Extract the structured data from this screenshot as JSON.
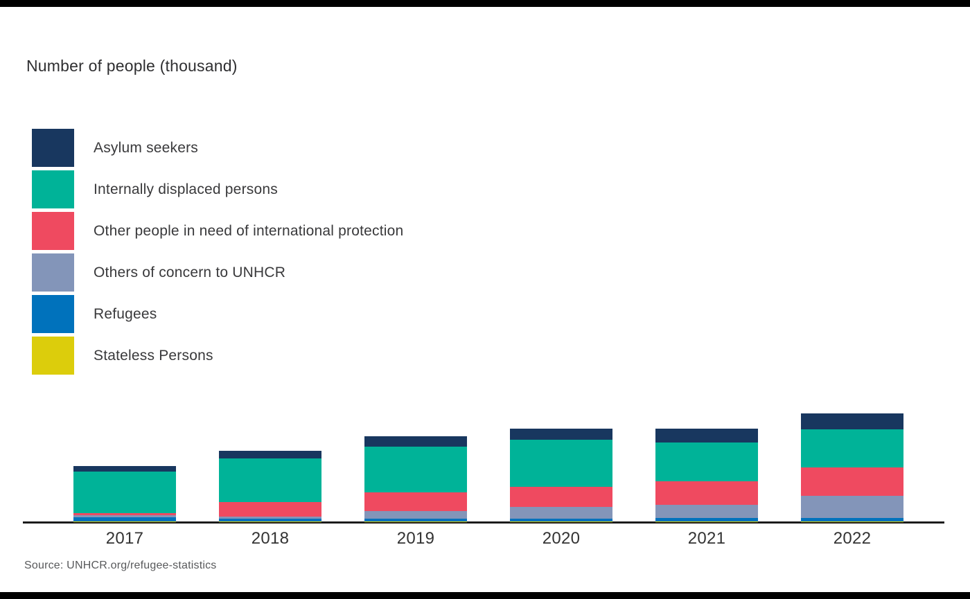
{
  "page": {
    "background_color": "#ffffff",
    "border_bar_color": "#000000"
  },
  "chart_data": {
    "type": "bar",
    "stacked": true,
    "title": "Number of people (thousand)",
    "unit": "thousand",
    "categories": [
      "2017",
      "2018",
      "2019",
      "2020",
      "2021",
      "2022"
    ],
    "series": [
      {
        "name": "Asylum seekers",
        "color": "#18375F",
        "values": [
          200,
          290,
          375,
          400,
          500,
          560
        ]
      },
      {
        "name": "Internally displaced persons",
        "color": "#00B398",
        "values": [
          1500,
          1570,
          1650,
          1710,
          1400,
          1375
        ]
      },
      {
        "name": "Other people in need of international protection",
        "color": "#EF4A60",
        "values": [
          60,
          530,
          690,
          725,
          850,
          1040
        ]
      },
      {
        "name": "Others of concern to UNHCR",
        "color": "#8395B9",
        "values": [
          80,
          70,
          270,
          420,
          470,
          790
        ]
      },
      {
        "name": "Refugees",
        "color": "#0072BC",
        "values": [
          150,
          100,
          100,
          100,
          120,
          125
        ]
      },
      {
        "name": "Stateless Persons",
        "color": "#DCCD0C",
        "values": [
          2,
          2,
          3,
          3,
          3,
          3
        ]
      }
    ],
    "stack_order_top_to_bottom": [
      "Asylum seekers",
      "Internally displaced persons",
      "Other people in need of international protection",
      "Others of concern to UNHCR",
      "Refugees",
      "Stateless Persons"
    ],
    "ylim": [
      0,
      4000
    ],
    "y_axis_tick_labels_visible": false,
    "gridlines": false,
    "legend_position": "top-left"
  },
  "footer": {
    "source": "Source: UNHCR.org/refugee-statistics"
  }
}
